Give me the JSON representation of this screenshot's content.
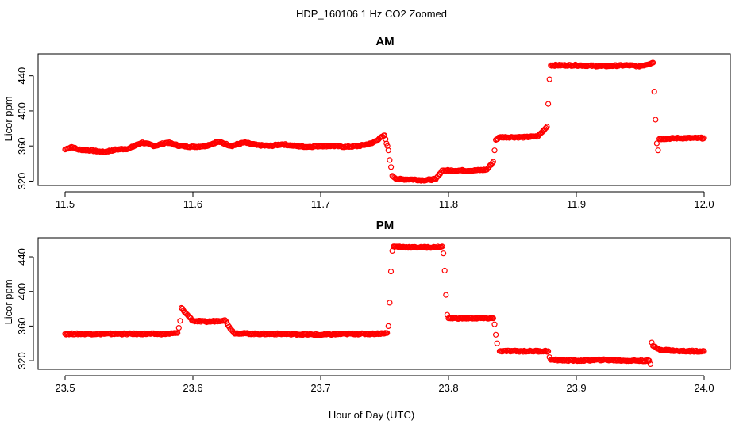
{
  "figure": {
    "title": "HDP_160106  1 Hz CO2 Zoomed",
    "xlabel": "Hour of Day (UTC)"
  },
  "colors": {
    "points": "#ff0000",
    "axis": "#000000"
  },
  "chart_data": [
    {
      "type": "scatter",
      "title": "AM",
      "xlabel": "",
      "ylabel": "Licor ppm",
      "xlim": [
        11.5,
        12.0
      ],
      "ylim": [
        315,
        465
      ],
      "xticks": [
        "11.5",
        "11.6",
        "11.7",
        "11.8",
        "11.9",
        "12.0"
      ],
      "yticks": [
        "320",
        "360",
        "400",
        "440"
      ],
      "marker": "open-circle",
      "series": [
        {
          "points": [
            [
              11.5,
              356
            ],
            [
              11.505,
              359
            ],
            [
              11.51,
              356
            ],
            [
              11.52,
              355
            ],
            [
              11.53,
              353
            ],
            [
              11.54,
              356
            ],
            [
              11.55,
              357
            ],
            [
              11.56,
              364
            ],
            [
              11.57,
              360
            ],
            [
              11.58,
              364
            ],
            [
              11.59,
              360
            ],
            [
              11.6,
              359
            ],
            [
              11.61,
              360
            ],
            [
              11.62,
              365
            ],
            [
              11.63,
              360
            ],
            [
              11.64,
              364
            ],
            [
              11.65,
              361
            ],
            [
              11.66,
              360
            ],
            [
              11.67,
              362
            ],
            [
              11.68,
              360
            ],
            [
              11.69,
              359
            ],
            [
              11.7,
              360
            ],
            [
              11.71,
              360
            ],
            [
              11.72,
              359
            ],
            [
              11.73,
              360
            ],
            [
              11.74,
              363
            ],
            [
              11.75,
              372
            ],
            [
              11.753,
              355
            ],
            [
              11.754,
              344
            ],
            [
              11.755,
              336
            ],
            [
              11.756,
              326
            ],
            [
              11.76,
              322
            ],
            [
              11.77,
              322
            ],
            [
              11.78,
              321
            ],
            [
              11.79,
              322
            ],
            [
              11.795,
              332
            ],
            [
              11.81,
              332
            ],
            [
              11.82,
              332
            ],
            [
              11.83,
              333
            ],
            [
              11.835,
              342
            ],
            [
              11.836,
              355
            ],
            [
              11.837,
              367
            ],
            [
              11.84,
              370
            ],
            [
              11.85,
              370
            ],
            [
              11.86,
              370
            ],
            [
              11.87,
              371
            ],
            [
              11.877,
              382
            ],
            [
              11.878,
              408
            ],
            [
              11.879,
              436
            ],
            [
              11.88,
              452
            ],
            [
              11.9,
              452
            ],
            [
              11.92,
              451
            ],
            [
              11.94,
              452
            ],
            [
              11.95,
              451
            ],
            [
              11.96,
              455
            ],
            [
              11.961,
              422
            ],
            [
              11.962,
              390
            ],
            [
              11.963,
              363
            ],
            [
              11.964,
              355
            ],
            [
              11.965,
              368
            ],
            [
              11.98,
              369
            ],
            [
              11.99,
              369
            ],
            [
              12.0,
              369
            ]
          ]
        }
      ]
    },
    {
      "type": "scatter",
      "title": "PM",
      "xlabel": "",
      "ylabel": "Licor ppm",
      "xlim": [
        23.5,
        24.0
      ],
      "ylim": [
        310,
        462
      ],
      "xticks": [
        "23.5",
        "23.6",
        "23.7",
        "23.8",
        "23.9",
        "24.0"
      ],
      "yticks": [
        "320",
        "360",
        "400",
        "440"
      ],
      "marker": "open-circle",
      "series": [
        {
          "points": [
            [
              23.5,
              351
            ],
            [
              23.52,
              351
            ],
            [
              23.54,
              351
            ],
            [
              23.56,
              351
            ],
            [
              23.58,
              351
            ],
            [
              23.588,
              352
            ],
            [
              23.589,
              358
            ],
            [
              23.59,
              366
            ],
            [
              23.591,
              381
            ],
            [
              23.595,
              374
            ],
            [
              23.6,
              366
            ],
            [
              23.61,
              365
            ],
            [
              23.62,
              366
            ],
            [
              23.625,
              367
            ],
            [
              23.63,
              356
            ],
            [
              23.632,
              352
            ],
            [
              23.65,
              351
            ],
            [
              23.67,
              351
            ],
            [
              23.7,
              350
            ],
            [
              23.72,
              351
            ],
            [
              23.74,
              351
            ],
            [
              23.752,
              352
            ],
            [
              23.753,
              360
            ],
            [
              23.754,
              387
            ],
            [
              23.755,
              423
            ],
            [
              23.756,
              447
            ],
            [
              23.757,
              452
            ],
            [
              23.77,
              451
            ],
            [
              23.78,
              451
            ],
            [
              23.79,
              451
            ],
            [
              23.795,
              452
            ],
            [
              23.796,
              444
            ],
            [
              23.797,
              424
            ],
            [
              23.798,
              396
            ],
            [
              23.799,
              373
            ],
            [
              23.8,
              369
            ],
            [
              23.81,
              369
            ],
            [
              23.82,
              369
            ],
            [
              23.835,
              369
            ],
            [
              23.836,
              362
            ],
            [
              23.837,
              350
            ],
            [
              23.838,
              340
            ],
            [
              23.84,
              331
            ],
            [
              23.86,
              331
            ],
            [
              23.878,
              331
            ],
            [
              23.879,
              324
            ],
            [
              23.88,
              321
            ],
            [
              23.9,
              320
            ],
            [
              23.92,
              321
            ],
            [
              23.94,
              320
            ],
            [
              23.957,
              320
            ],
            [
              23.958,
              316
            ],
            [
              23.959,
              341
            ],
            [
              23.96,
              337
            ],
            [
              23.965,
              333
            ],
            [
              23.98,
              331
            ],
            [
              23.99,
              331
            ],
            [
              24.0,
              331
            ]
          ]
        }
      ]
    }
  ]
}
